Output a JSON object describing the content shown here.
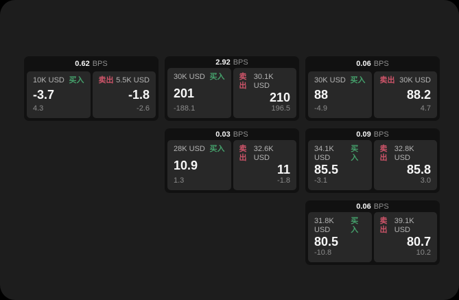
{
  "labels": {
    "bps_unit": "BPS",
    "buy": "买入",
    "sell": "卖出"
  },
  "colors": {
    "page_bg": "#1d1d1d",
    "card_bg": "#111111",
    "panel_bg": "#282828",
    "buy_green": "#45a06b",
    "sell_red": "#cd5469",
    "value_white": "#f7f7f7",
    "muted_gray": "#8c8c8c"
  },
  "cards": [
    {
      "col": 1,
      "row": 1,
      "bps": "0.62",
      "buy": {
        "amount": "10K USD",
        "value": "-3.7",
        "delta": "4.3"
      },
      "sell": {
        "amount": "5.5K USD",
        "value": "-1.8",
        "delta": "-2.6"
      }
    },
    {
      "col": 2,
      "row": 1,
      "bps": "2.92",
      "buy": {
        "amount": "30K USD",
        "value": "201",
        "delta": "-188.1"
      },
      "sell": {
        "amount": "30.1K USD",
        "value": "210",
        "delta": "196.5"
      }
    },
    {
      "col": 3,
      "row": 1,
      "bps": "0.06",
      "buy": {
        "amount": "30K USD",
        "value": "88",
        "delta": "-4.9"
      },
      "sell": {
        "amount": "30K USD",
        "value": "88.2",
        "delta": "4.7"
      }
    },
    {
      "col": 2,
      "row": 2,
      "bps": "0.03",
      "buy": {
        "amount": "28K USD",
        "value": "10.9",
        "delta": "1.3"
      },
      "sell": {
        "amount": "32.6K USD",
        "value": "11",
        "delta": "-1.8"
      }
    },
    {
      "col": 3,
      "row": 2,
      "bps": "0.09",
      "buy": {
        "amount": "34.1K USD",
        "value": "85.5",
        "delta": "-3.1"
      },
      "sell": {
        "amount": "32.8K USD",
        "value": "85.8",
        "delta": "3.0"
      }
    },
    {
      "col": 3,
      "row": 3,
      "bps": "0.06",
      "buy": {
        "amount": "31.8K USD",
        "value": "80.5",
        "delta": "-10.8"
      },
      "sell": {
        "amount": "39.1K USD",
        "value": "80.7",
        "delta": "10.2"
      }
    }
  ]
}
